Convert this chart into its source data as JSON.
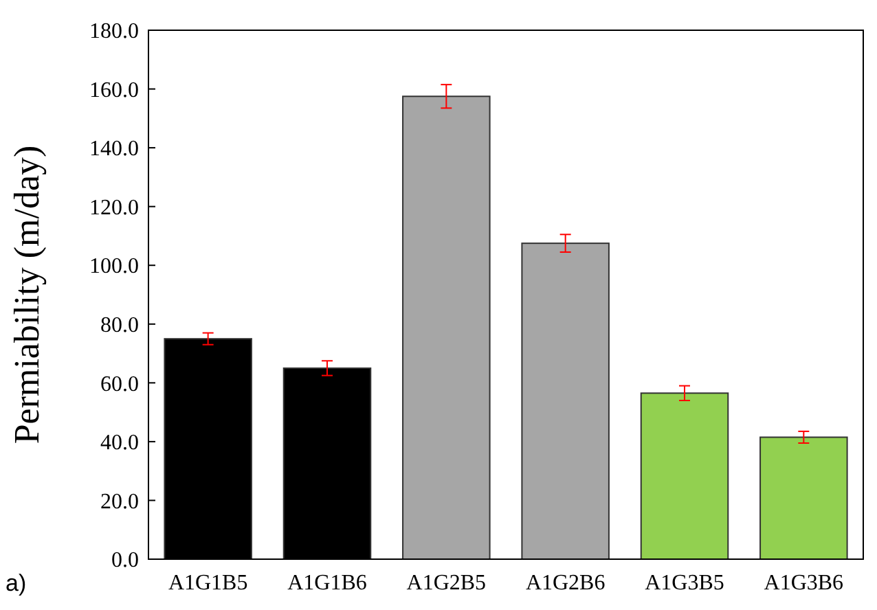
{
  "chart_data": {
    "type": "bar",
    "ylabel": "Permiability (m/day)",
    "categories": [
      "A1G1B5",
      "A1G1B6",
      "A1G2B5",
      "A1G2B6",
      "A1G3B5",
      "A1G3B6"
    ],
    "values": [
      75,
      65,
      157.5,
      107.5,
      56.5,
      41.5
    ],
    "colors": [
      "#000000",
      "#000000",
      "#a6a6a6",
      "#a6a6a6",
      "#92d050",
      "#92d050"
    ],
    "errors": [
      2,
      2.5,
      4,
      3,
      2.5,
      2
    ],
    "ylim": [
      0,
      180
    ],
    "yticks": [
      {
        "value": 0,
        "label": "0.0"
      },
      {
        "value": 20,
        "label": "20.0"
      },
      {
        "value": 40,
        "label": "40.0"
      },
      {
        "value": 60,
        "label": "60.0"
      },
      {
        "value": 80,
        "label": "80.0"
      },
      {
        "value": 100,
        "label": "100.0"
      },
      {
        "value": 120,
        "label": "120.0"
      },
      {
        "value": 140,
        "label": "140.0"
      },
      {
        "value": 160,
        "label": "160.0"
      },
      {
        "value": 180,
        "label": "180.0"
      }
    ],
    "grid": false,
    "annotations": [
      "a)"
    ]
  }
}
